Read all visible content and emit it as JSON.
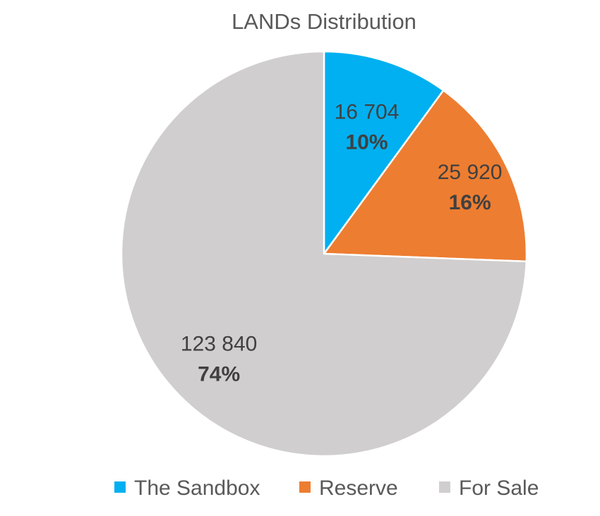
{
  "chart_data": {
    "type": "pie",
    "title": "LANDs Distribution",
    "legend_position": "bottom",
    "start_angle_deg": 0,
    "direction": "clockwise",
    "slices": [
      {
        "name": "The Sandbox",
        "value": 16704,
        "value_label": "16 704",
        "percent_label": "10%",
        "color": "#00B0F0"
      },
      {
        "name": "Reserve",
        "value": 25920,
        "value_label": "25 920",
        "percent_label": "16%",
        "color": "#ED7D31"
      },
      {
        "name": "For Sale",
        "value": 123840,
        "value_label": "123 840",
        "percent_label": "74%",
        "color": "#D0CECE"
      }
    ]
  }
}
